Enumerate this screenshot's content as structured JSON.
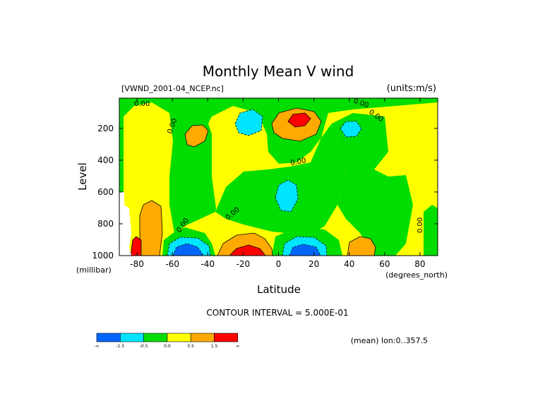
{
  "chart_data": {
    "type": "heatmap",
    "title": "Monthly Mean V wind",
    "file_label": "[VWND_2001-04_NCEP.nc]",
    "units_label": "(units:m/s)",
    "xlabel": "Latitude",
    "x_unit_label": "(degrees_north)",
    "ylabel": "Level",
    "y_unit_label": "(millibar)",
    "xlim": [
      -90,
      90
    ],
    "ylim": [
      1000,
      10
    ],
    "y_inverted": true,
    "x_ticks": [
      "-80",
      "-60",
      "-40",
      "-20",
      "0",
      "20",
      "40",
      "60",
      "80"
    ],
    "x_tick_values": [
      -80,
      -60,
      -40,
      -20,
      0,
      20,
      40,
      60,
      80
    ],
    "y_ticks": [
      "200",
      "400",
      "600",
      "800",
      "1000"
    ],
    "y_tick_values": [
      200,
      400,
      600,
      800,
      1000
    ],
    "contour_interval_text": "CONTOUR INTERVAL = 5.000E-01",
    "mean_text": "(mean) lon:0..357.5",
    "contour_labels": [
      "0.00",
      "0.00",
      "0.00",
      "0.00",
      "0.00",
      "0.00",
      "0.00",
      "0.00"
    ],
    "colorbar": {
      "colors": [
        "#0066ff",
        "#00e5ff",
        "#00dd00",
        "#ffff00",
        "#ffaa00",
        "#ff0000"
      ],
      "labels": [
        "-∞",
        "-1.5",
        "-0.5",
        "0.0",
        "0.5",
        "1.5",
        "∞"
      ]
    },
    "regions": [
      {
        "level": "positive",
        "lat": -5,
        "lev": 150,
        "value": 1.6
      },
      {
        "level": "positive",
        "lat": -40,
        "lev": 230,
        "value": 0.6
      },
      {
        "level": "negative",
        "lat": -20,
        "lev": 160,
        "value": -0.6
      },
      {
        "level": "negative",
        "lat": 10,
        "lev": 640,
        "value": -0.7
      },
      {
        "level": "negative",
        "lat": 40,
        "lev": 200,
        "value": -0.6
      },
      {
        "level": "positive",
        "lat": -18,
        "lev": 980,
        "value": 1.6
      },
      {
        "level": "negative",
        "lat": -53,
        "lev": 990,
        "value": -1.6
      },
      {
        "level": "negative",
        "lat": 13,
        "lev": 990,
        "value": -1.6
      },
      {
        "level": "positive",
        "lat": 47,
        "lev": 980,
        "value": 0.7
      },
      {
        "level": "positive",
        "lat": -76,
        "lev": 870,
        "value": 0.8
      }
    ]
  }
}
